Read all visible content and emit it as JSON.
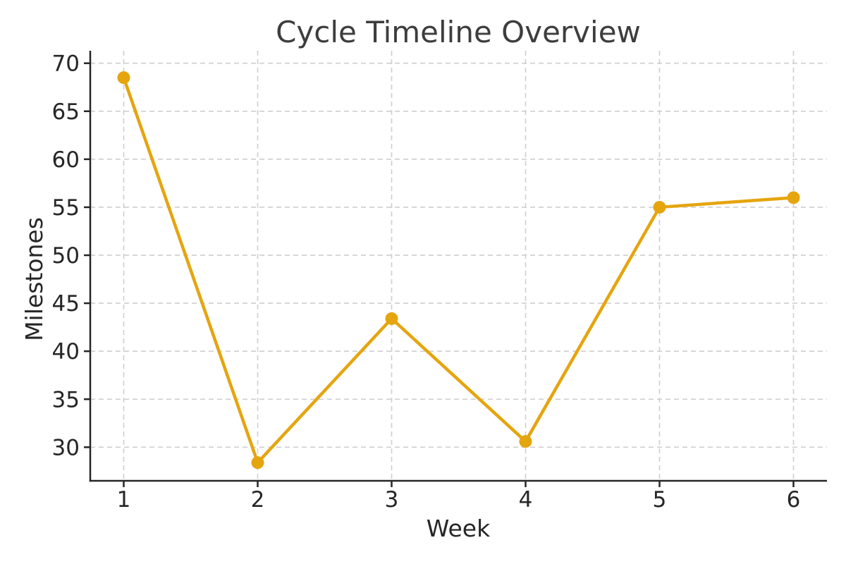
{
  "chart_data": {
    "type": "line",
    "title": "Cycle Timeline Overview",
    "xlabel": "Week",
    "ylabel": "Milestones",
    "x": [
      1,
      2,
      3,
      4,
      5,
      6
    ],
    "series": [
      {
        "name": "Milestones",
        "values": [
          68.5,
          28.4,
          43.4,
          30.6,
          55.0,
          56.0
        ]
      }
    ],
    "xticks": [
      1,
      2,
      3,
      4,
      5,
      6
    ],
    "yticks": [
      30,
      35,
      40,
      45,
      50,
      55,
      60,
      65,
      70
    ],
    "xlim": [
      0.75,
      6.25
    ],
    "ylim": [
      26.5,
      71.3
    ],
    "grid": true,
    "grid_style": "dashed",
    "legend": "none",
    "colors": {
      "line": "#E5A50F",
      "marker": "#E5A50F",
      "grid": "#CFCFCF",
      "axis": "#262626",
      "title": "#3d3d3d",
      "tick_label": "#262626"
    },
    "line_width": 4.5,
    "marker_radius": 9
  }
}
